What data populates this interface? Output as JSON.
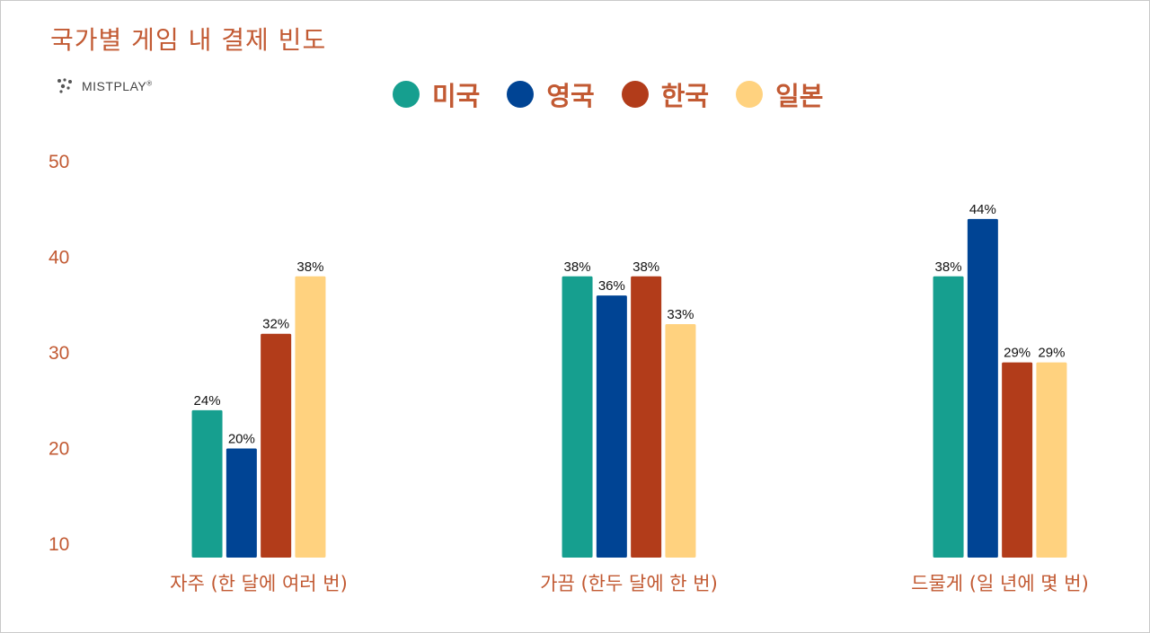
{
  "chart_data": {
    "type": "bar",
    "title": "국가별 게임 내 결제 빈도",
    "categories": [
      "자주 (한 달에 여러 번)",
      "가끔 (한두 달에 한 번)",
      "드물게 (일 년에 몇 번)"
    ],
    "series": [
      {
        "name": "미국",
        "color": "#169f8f",
        "values": [
          24,
          38,
          38
        ],
        "labels": [
          "24%",
          "38%",
          "38%"
        ]
      },
      {
        "name": "영국",
        "color": "#004494",
        "values": [
          20,
          36,
          44
        ],
        "labels": [
          "20%",
          "36%",
          "44%"
        ]
      },
      {
        "name": "한국",
        "color": "#b23c1a",
        "values": [
          32,
          38,
          29
        ],
        "labels": [
          "32%",
          "38%",
          "29%"
        ]
      },
      {
        "name": "일본",
        "color": "#ffd27f",
        "values": [
          38,
          33,
          29
        ],
        "labels": [
          "38%",
          "33%",
          "29%"
        ]
      }
    ],
    "ylim": [
      10,
      50
    ],
    "yticks": [
      "10",
      "20",
      "30",
      "40",
      "50"
    ],
    "grid": false,
    "legend_position": "top-center"
  },
  "brand": {
    "name": "MISTPLAY",
    "mark": "®"
  }
}
